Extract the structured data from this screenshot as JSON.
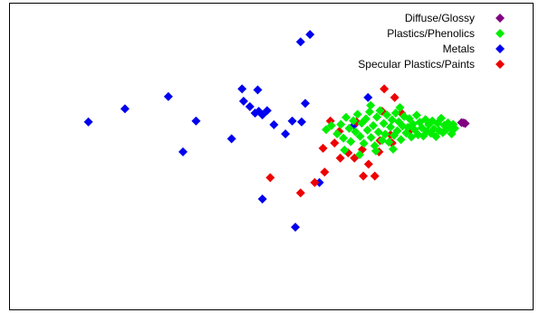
{
  "chart_data": {
    "type": "scatter",
    "title": "",
    "xlabel": "",
    "ylabel": "",
    "grid": false,
    "axes_visible": false,
    "xlim": [
      0,
      100
    ],
    "ylim": [
      0,
      100
    ],
    "legend": {
      "placement": "top-right",
      "entries": [
        {
          "label": "Diffuse/Glossy",
          "color": "#800080"
        },
        {
          "label": "Plastics/Phenolics",
          "color": "#00ee00"
        },
        {
          "label": "Metals",
          "color": "#0000ee"
        },
        {
          "label": "Specular Plastics/Paints",
          "color": "#ee0000"
        }
      ]
    },
    "series": [
      {
        "name": "Metals",
        "color": "#0000ee",
        "points": [
          [
            15.0,
            61.3
          ],
          [
            22.0,
            65.6
          ],
          [
            30.3,
            69.6
          ],
          [
            33.1,
            51.5
          ],
          [
            35.6,
            61.6
          ],
          [
            42.4,
            55.8
          ],
          [
            44.4,
            72.1
          ],
          [
            44.7,
            68.1
          ],
          [
            45.9,
            66.3
          ],
          [
            46.9,
            64.2
          ],
          [
            47.6,
            64.8
          ],
          [
            47.4,
            71.8
          ],
          [
            48.3,
            63.6
          ],
          [
            49.2,
            65.0
          ],
          [
            50.5,
            60.4
          ],
          [
            52.7,
            57.4
          ],
          [
            54.0,
            61.6
          ],
          [
            55.8,
            61.3
          ],
          [
            54.6,
            26.9
          ],
          [
            48.3,
            36.1
          ],
          [
            55.6,
            87.5
          ],
          [
            57.4,
            89.9
          ],
          [
            56.5,
            67.4
          ],
          [
            59.2,
            41.5
          ],
          [
            68.5,
            69.3
          ],
          [
            65.8,
            60.2
          ]
        ]
      },
      {
        "name": "Specular Plastics/Paints",
        "color": "#ee0000",
        "points": [
          [
            49.8,
            43.1
          ],
          [
            55.6,
            38.1
          ],
          [
            58.3,
            41.5
          ],
          [
            59.9,
            52.7
          ],
          [
            60.2,
            44.9
          ],
          [
            61.3,
            61.6
          ],
          [
            62.1,
            54.4
          ],
          [
            63.2,
            49.5
          ],
          [
            63.0,
            58.2
          ],
          [
            64.7,
            51.2
          ],
          [
            65.9,
            49.5
          ],
          [
            66.3,
            61.3
          ],
          [
            67.4,
            52.3
          ],
          [
            67.6,
            43.6
          ],
          [
            68.6,
            47.5
          ],
          [
            69.8,
            43.6
          ],
          [
            70.8,
            55.2
          ],
          [
            71.6,
            72.1
          ],
          [
            73.6,
            69.3
          ],
          [
            71.2,
            64.8
          ],
          [
            72.8,
            57.1
          ],
          [
            74.9,
            64.2
          ],
          [
            76.5,
            58.5
          ],
          [
            70.6,
            51.5
          ],
          [
            73.1,
            54.4
          ]
        ]
      },
      {
        "name": "Plastics/Phenolics",
        "color": "#00ee00",
        "points": [
          [
            60.5,
            58.8
          ],
          [
            61.5,
            60.1
          ],
          [
            62.6,
            57.4
          ],
          [
            63.3,
            60.5
          ],
          [
            63.8,
            56.0
          ],
          [
            64.3,
            62.8
          ],
          [
            64.9,
            59.2
          ],
          [
            65.2,
            54.9
          ],
          [
            65.7,
            61.7
          ],
          [
            66.1,
            58.1
          ],
          [
            66.5,
            63.8
          ],
          [
            67.0,
            56.6
          ],
          [
            67.3,
            60.9
          ],
          [
            67.7,
            54.3
          ],
          [
            68.1,
            62.3
          ],
          [
            68.4,
            58.6
          ],
          [
            68.8,
            64.6
          ],
          [
            69.1,
            56.2
          ],
          [
            69.5,
            60.1
          ],
          [
            69.8,
            53.5
          ],
          [
            70.2,
            62.9
          ],
          [
            70.5,
            58.0
          ],
          [
            70.8,
            65.0
          ],
          [
            71.2,
            55.3
          ],
          [
            71.5,
            60.8
          ],
          [
            71.8,
            57.3
          ],
          [
            72.1,
            63.6
          ],
          [
            72.5,
            54.7
          ],
          [
            72.8,
            59.6
          ],
          [
            73.1,
            62.0
          ],
          [
            73.5,
            56.9
          ],
          [
            73.8,
            64.2
          ],
          [
            74.1,
            58.4
          ],
          [
            74.4,
            61.3
          ],
          [
            74.8,
            55.5
          ],
          [
            75.1,
            60.0
          ],
          [
            75.4,
            63.1
          ],
          [
            75.8,
            57.7
          ],
          [
            76.1,
            59.5
          ],
          [
            76.4,
            62.4
          ],
          [
            76.8,
            56.4
          ],
          [
            77.1,
            60.6
          ],
          [
            77.4,
            58.8
          ],
          [
            77.8,
            63.5
          ],
          [
            78.1,
            57.1
          ],
          [
            78.4,
            61.2
          ],
          [
            78.8,
            59.4
          ],
          [
            79.1,
            56.7
          ],
          [
            79.5,
            62.1
          ],
          [
            79.8,
            58.2
          ],
          [
            80.1,
            60.4
          ],
          [
            80.5,
            57.6
          ],
          [
            80.8,
            61.6
          ],
          [
            81.1,
            59.0
          ],
          [
            81.5,
            56.5
          ],
          [
            81.8,
            60.9
          ],
          [
            82.1,
            58.5
          ],
          [
            82.5,
            62.5
          ],
          [
            82.8,
            57.8
          ],
          [
            83.1,
            60.2
          ],
          [
            83.5,
            58.8
          ],
          [
            83.8,
            61.0
          ],
          [
            84.1,
            59.6
          ],
          [
            84.5,
            57.4
          ],
          [
            84.8,
            60.5
          ],
          [
            85.1,
            59.2
          ],
          [
            66.9,
            50.6
          ],
          [
            70.0,
            51.8
          ],
          [
            73.3,
            52.4
          ],
          [
            69.0,
            66.7
          ],
          [
            74.6,
            66.0
          ],
          [
            64.0,
            52.1
          ]
        ]
      },
      {
        "name": "Diffuse/Glossy",
        "color": "#800080",
        "points": [
          [
            86.4,
            61.1
          ],
          [
            86.8,
            61.0
          ],
          [
            87.1,
            60.8
          ]
        ]
      }
    ]
  }
}
